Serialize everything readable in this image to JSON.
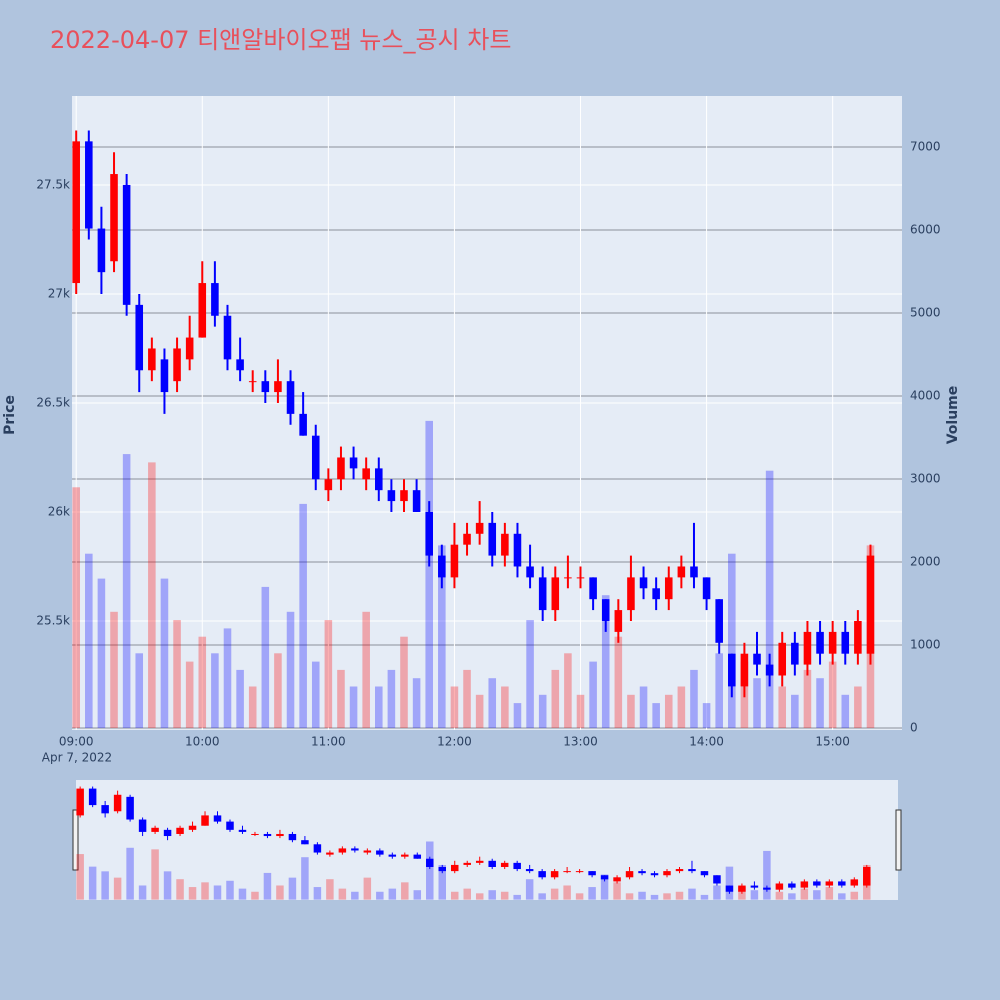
{
  "chart_data": {
    "type": "candlestick",
    "title": "2022-04-07 티앤알바이오팹 뉴스_공시 차트",
    "y_title": "Price",
    "y2_title": "Volume",
    "x_date_label": "Apr 7, 2022",
    "x": [
      "09:00",
      "09:06",
      "09:12",
      "09:18",
      "09:24",
      "09:30",
      "09:36",
      "09:42",
      "09:48",
      "09:54",
      "10:00",
      "10:06",
      "10:12",
      "10:18",
      "10:24",
      "10:30",
      "10:36",
      "10:42",
      "10:48",
      "10:54",
      "11:00",
      "11:06",
      "11:12",
      "11:18",
      "11:24",
      "11:30",
      "11:36",
      "11:42",
      "11:48",
      "11:54",
      "12:00",
      "12:06",
      "12:12",
      "12:18",
      "12:24",
      "12:30",
      "12:36",
      "12:42",
      "12:48",
      "12:54",
      "13:00",
      "13:06",
      "13:12",
      "13:18",
      "13:24",
      "13:30",
      "13:36",
      "13:42",
      "13:48",
      "13:54",
      "14:00",
      "14:06",
      "14:12",
      "14:18",
      "14:24",
      "14:30",
      "14:36",
      "14:42",
      "14:48",
      "14:54",
      "15:00",
      "15:06",
      "15:12",
      "15:18"
    ],
    "open": [
      27050,
      27700,
      27300,
      27150,
      27500,
      26950,
      26650,
      26700,
      26600,
      26700,
      26800,
      27050,
      26900,
      26700,
      26600,
      26600,
      26550,
      26600,
      26450,
      26350,
      26100,
      26150,
      26250,
      26150,
      26200,
      26100,
      26050,
      26100,
      26000,
      25800,
      25700,
      25850,
      25900,
      25950,
      25800,
      25900,
      25750,
      25700,
      25550,
      25700,
      25700,
      25700,
      25600,
      25450,
      25550,
      25700,
      25650,
      25600,
      25700,
      25750,
      25700,
      25600,
      25350,
      25200,
      25350,
      25300,
      25250,
      25400,
      25300,
      25450,
      25350,
      25450,
      25350,
      25350
    ],
    "high": [
      27750,
      27750,
      27400,
      27650,
      27550,
      27000,
      26800,
      26750,
      26800,
      26900,
      27150,
      27150,
      26950,
      26800,
      26650,
      26650,
      26700,
      26650,
      26550,
      26400,
      26200,
      26300,
      26300,
      26250,
      26250,
      26150,
      26150,
      26150,
      26050,
      25850,
      25950,
      25950,
      26050,
      26000,
      25950,
      25950,
      25850,
      25750,
      25750,
      25800,
      25750,
      25700,
      25600,
      25600,
      25800,
      25750,
      25700,
      25750,
      25800,
      25950,
      25700,
      25600,
      25350,
      25400,
      25450,
      25350,
      25450,
      25450,
      25500,
      25500,
      25500,
      25500,
      25550,
      25850
    ],
    "low": [
      27000,
      27250,
      27000,
      27100,
      26900,
      26550,
      26600,
      26450,
      26550,
      26650,
      26800,
      26850,
      26650,
      26600,
      26550,
      26500,
      26500,
      26400,
      26350,
      26100,
      26050,
      26100,
      26150,
      26100,
      26050,
      26000,
      26000,
      26000,
      25750,
      25650,
      25650,
      25800,
      25850,
      25750,
      25750,
      25700,
      25650,
      25500,
      25500,
      25650,
      25650,
      25550,
      25450,
      25400,
      25500,
      25600,
      25550,
      25550,
      25650,
      25650,
      25550,
      25350,
      25150,
      25150,
      25250,
      25200,
      25200,
      25250,
      25250,
      25300,
      25300,
      25300,
      25300,
      25300
    ],
    "close": [
      27700,
      27300,
      27100,
      27550,
      26950,
      26650,
      26750,
      26550,
      26750,
      26800,
      27050,
      26900,
      26700,
      26650,
      26600,
      26550,
      26600,
      26450,
      26350,
      26150,
      26150,
      26250,
      26200,
      26200,
      26100,
      26050,
      26100,
      26000,
      25800,
      25700,
      25850,
      25900,
      25950,
      25800,
      25900,
      25750,
      25700,
      25550,
      25700,
      25700,
      25700,
      25600,
      25500,
      25550,
      25700,
      25650,
      25600,
      25700,
      25750,
      25700,
      25600,
      25400,
      25200,
      25350,
      25300,
      25250,
      25400,
      25300,
      25450,
      25350,
      25450,
      25350,
      25500,
      25800
    ],
    "volume": [
      2900,
      2100,
      1800,
      1400,
      3300,
      900,
      3200,
      1800,
      1300,
      800,
      1100,
      900,
      1200,
      700,
      500,
      1700,
      900,
      1400,
      2700,
      800,
      1300,
      700,
      500,
      1400,
      500,
      700,
      1100,
      600,
      3700,
      2200,
      500,
      700,
      400,
      600,
      500,
      300,
      1300,
      400,
      700,
      900,
      400,
      800,
      1600,
      1100,
      400,
      500,
      300,
      400,
      500,
      700,
      300,
      900,
      2100,
      800,
      600,
      3100,
      500,
      400,
      700,
      600,
      800,
      400,
      500,
      2200
    ],
    "increasing_color": "#ff0000",
    "decreasing_color": "#0000ff",
    "xlim": [
      "08:58",
      "15:33"
    ],
    "xticks": [
      "09:00",
      "10:00",
      "11:00",
      "12:00",
      "13:00",
      "14:00",
      "15:00"
    ],
    "ylim": [
      25000,
      27908
    ],
    "yticks": [
      {
        "value": 25500,
        "label": "25.5k"
      },
      {
        "value": 26000,
        "label": "26k"
      },
      {
        "value": 26500,
        "label": "26.5k"
      },
      {
        "value": 27000,
        "label": "27k"
      },
      {
        "value": 27500,
        "label": "27.5k"
      }
    ],
    "y2lim": [
      -24,
      7614
    ],
    "y2ticks": [
      0,
      1000,
      2000,
      3000,
      4000,
      5000,
      6000,
      7000
    ],
    "grid": true
  }
}
